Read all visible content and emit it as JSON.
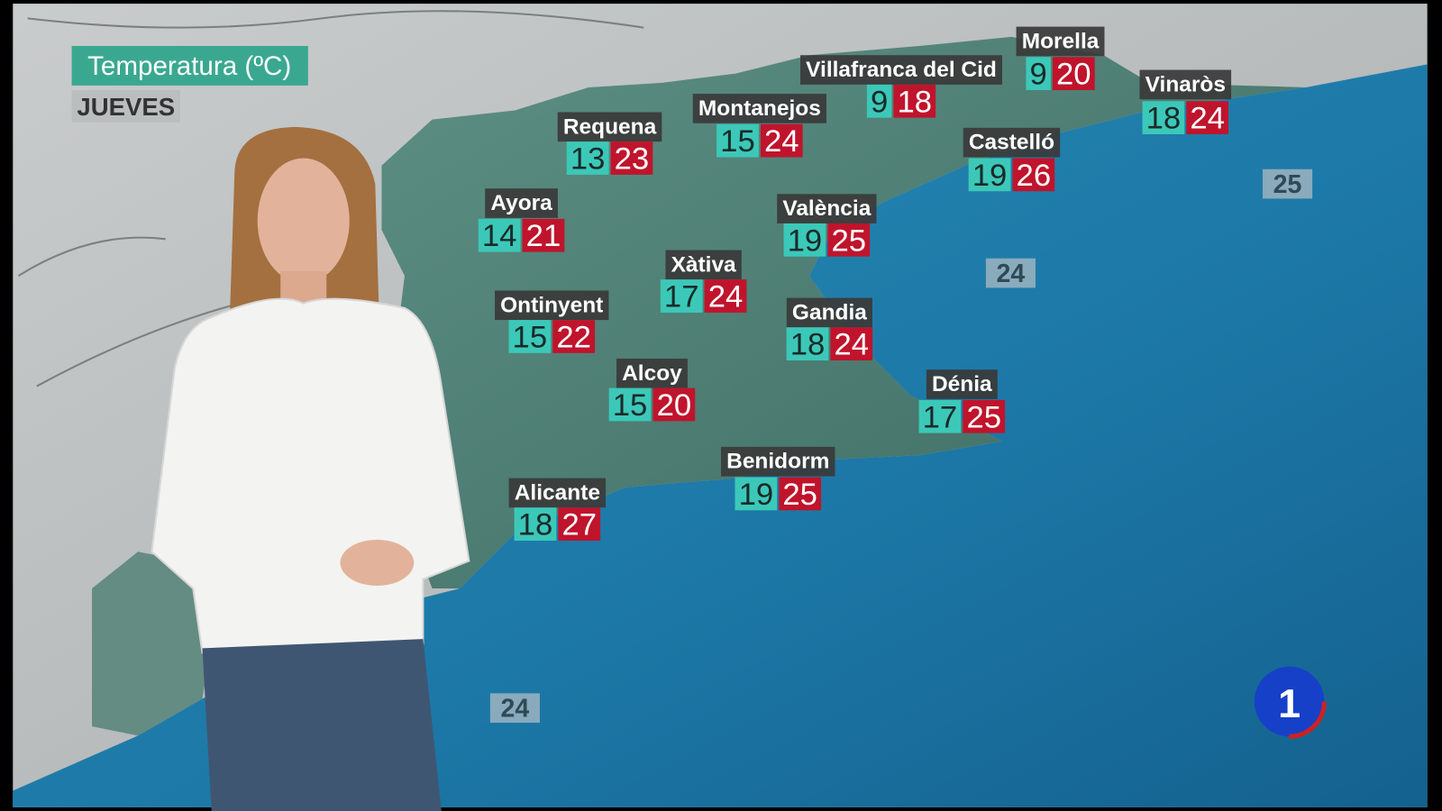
{
  "header": {
    "title": "Temperatura (ºC)",
    "day": "JUEVES"
  },
  "cities": [
    {
      "name": "Requena",
      "min": 13,
      "max": 23
    },
    {
      "name": "Montanejos",
      "min": 15,
      "max": 24
    },
    {
      "name": "Villafranca del Cid",
      "min": 9,
      "max": 18
    },
    {
      "name": "Morella",
      "min": 9,
      "max": 20
    },
    {
      "name": "Vinaròs",
      "min": 18,
      "max": 24
    },
    {
      "name": "Castelló",
      "min": 19,
      "max": 26
    },
    {
      "name": "Ayora",
      "min": 14,
      "max": 21
    },
    {
      "name": "València",
      "min": 19,
      "max": 25
    },
    {
      "name": "Xàtiva",
      "min": 17,
      "max": 24
    },
    {
      "name": "Ontinyent",
      "min": 15,
      "max": 22
    },
    {
      "name": "Gandia",
      "min": 18,
      "max": 24
    },
    {
      "name": "Alcoy",
      "min": 15,
      "max": 20
    },
    {
      "name": "Dénia",
      "min": 17,
      "max": 25
    },
    {
      "name": "Benidorm",
      "min": 19,
      "max": 25
    },
    {
      "name": "Alicante",
      "min": 18,
      "max": 27
    }
  ],
  "sea_temperatures": [
    25,
    24,
    24
  ],
  "channel_logo": "1"
}
